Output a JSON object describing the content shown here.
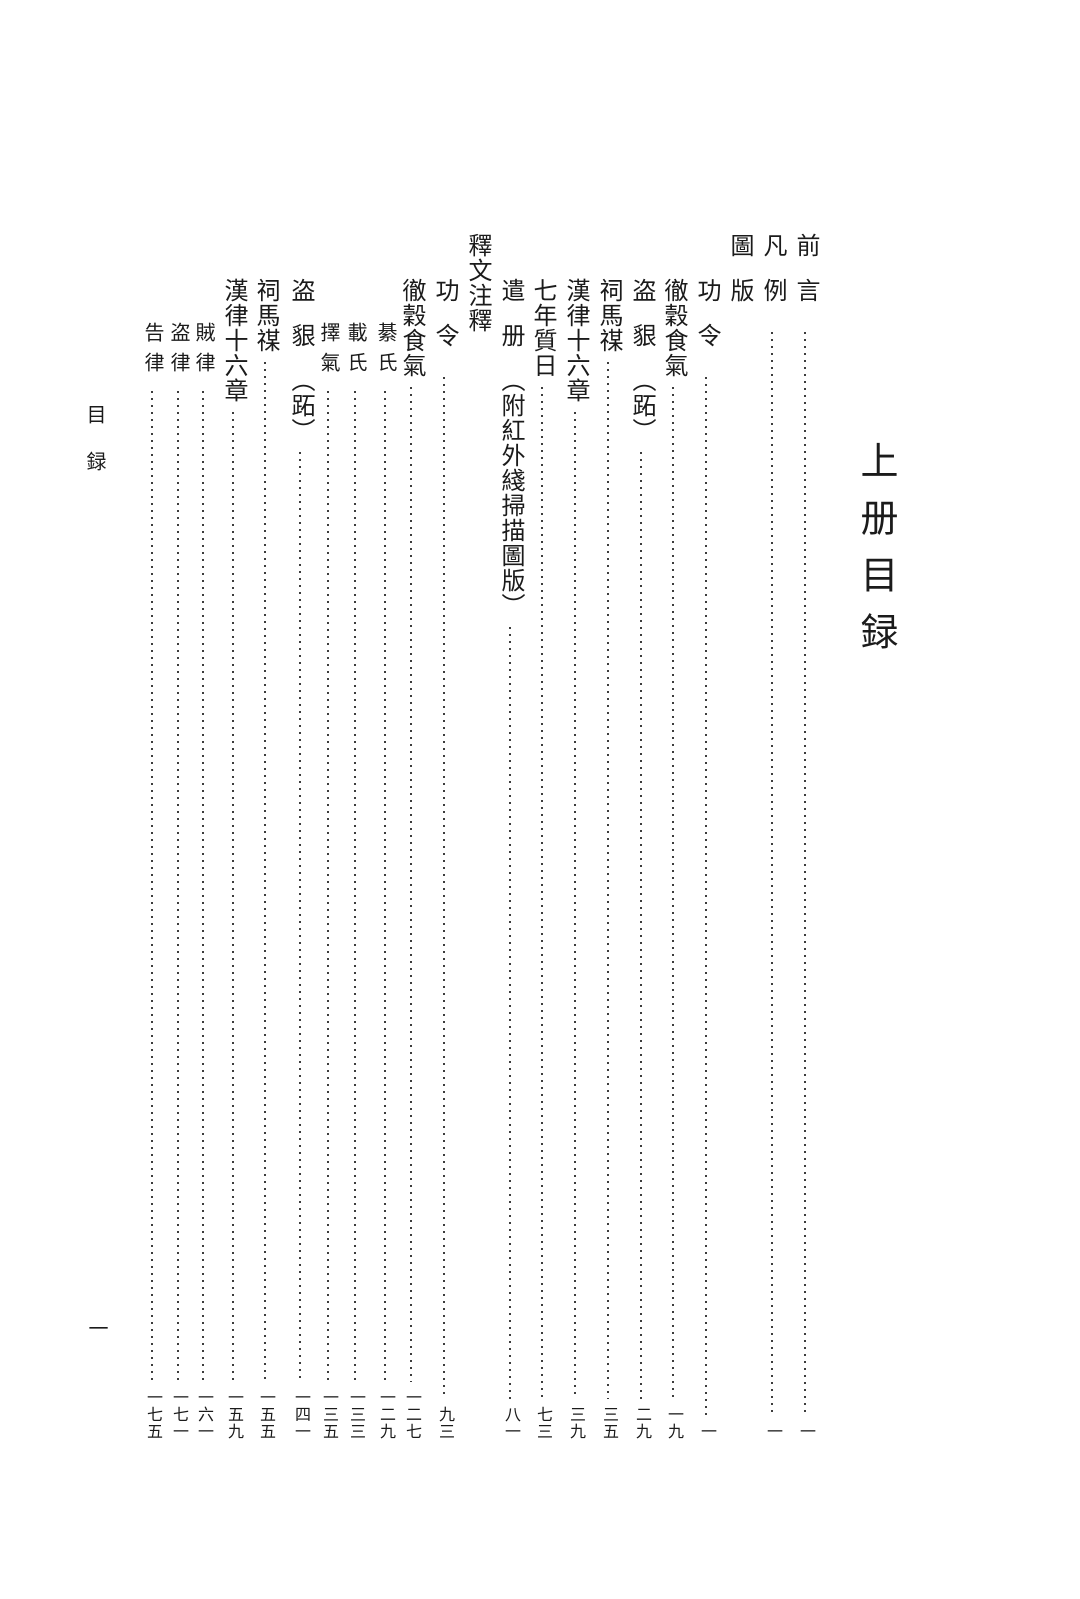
{
  "document": {
    "volume_header": "上册目録",
    "running_header": "目録",
    "page_number": "一"
  },
  "colors": {
    "ink": "#1b1b1b",
    "leader_dots": "#3c3c3c",
    "background": "#ffffff"
  },
  "toc": {
    "front_matter": [
      {
        "title": "前言",
        "page": "一"
      },
      {
        "title": "凡例",
        "page": "一"
      }
    ],
    "sections": [
      {
        "title": "圖版",
        "items": [
          {
            "title": "功令",
            "page": "一"
          },
          {
            "title": "徹穀食氣",
            "page": "一九"
          },
          {
            "title": "盗貇",
            "paren": "（跖）",
            "page": "二九"
          },
          {
            "title": "祠馬禖",
            "page": "三五"
          },
          {
            "title": "漢律十六章",
            "page": "三九"
          },
          {
            "title": "七年質日",
            "page": "七三"
          },
          {
            "title": "遣册",
            "paren": "（附紅外綫掃描圖版）",
            "page": "八一"
          }
        ]
      },
      {
        "title": "釋文注釋",
        "items": [
          {
            "title": "功令",
            "page": "九三"
          },
          {
            "title": "徹穀食氣",
            "page": "一二七",
            "subitems": [
              {
                "title": "綦氏",
                "page": "一二九"
              },
              {
                "title": "載氏",
                "page": "一三三"
              },
              {
                "title": "擇氣",
                "page": "一三五"
              }
            ]
          },
          {
            "title": "盗貇",
            "paren": "（跖）",
            "page": "一四一"
          },
          {
            "title": "祠馬禖",
            "page": "一五五"
          },
          {
            "title": "漢律十六章",
            "page": "一五九",
            "subitems": [
              {
                "title": "賊律",
                "page": "一六一"
              },
              {
                "title": "盗律",
                "page": "一七一"
              },
              {
                "title": "告律",
                "page": "一七五"
              }
            ]
          }
        ]
      }
    ]
  }
}
